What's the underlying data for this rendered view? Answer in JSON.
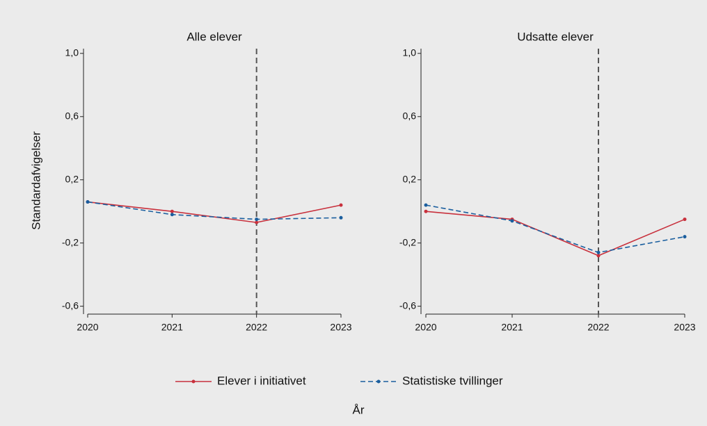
{
  "chart_data": [
    {
      "type": "line",
      "title": "Alle elever",
      "ylabel": "Standardafvigelser",
      "xlabel": "År",
      "x": [
        2020,
        2021,
        2022,
        2023
      ],
      "xlim": [
        2020,
        2023
      ],
      "xticks": [
        2020,
        2021,
        2022,
        2023
      ],
      "ylim": [
        -0.65,
        1.03
      ],
      "yticks": [
        {
          "value": -0.6,
          "label": "-0,6"
        },
        {
          "value": -0.2,
          "label": "-0,2"
        },
        {
          "value": 0.2,
          "label": "0,2"
        },
        {
          "value": 0.6,
          "label": "0,6"
        },
        {
          "value": 1.0,
          "label": "1,0"
        }
      ],
      "vline": 2022,
      "series": [
        {
          "name": "Elever i initiativet",
          "color": "#c8303c",
          "dash": false,
          "values": [
            0.06,
            0.0,
            -0.07,
            0.04
          ]
        },
        {
          "name": "Statistiske tvillinger",
          "color": "#1a5e9e",
          "dash": true,
          "values": [
            0.06,
            -0.02,
            -0.05,
            -0.04
          ]
        }
      ]
    },
    {
      "type": "line",
      "title": "Udsatte elever",
      "x": [
        2020,
        2021,
        2022,
        2023
      ],
      "xlim": [
        2020,
        2023
      ],
      "xticks": [
        2020,
        2021,
        2022,
        2023
      ],
      "ylim": [
        -0.65,
        1.03
      ],
      "yticks": [
        {
          "value": -0.6,
          "label": "-0,6"
        },
        {
          "value": -0.2,
          "label": "-0,2"
        },
        {
          "value": 0.2,
          "label": "0,2"
        },
        {
          "value": 0.6,
          "label": "0,6"
        },
        {
          "value": 1.0,
          "label": "1,0"
        }
      ],
      "vline": 2022,
      "series": [
        {
          "name": "Elever i initiativet",
          "color": "#c8303c",
          "dash": false,
          "values": [
            0.0,
            -0.05,
            -0.28,
            -0.05
          ]
        },
        {
          "name": "Statistiske tvillinger",
          "color": "#1a5e9e",
          "dash": true,
          "values": [
            0.04,
            -0.06,
            -0.26,
            -0.16
          ]
        }
      ]
    }
  ]
}
